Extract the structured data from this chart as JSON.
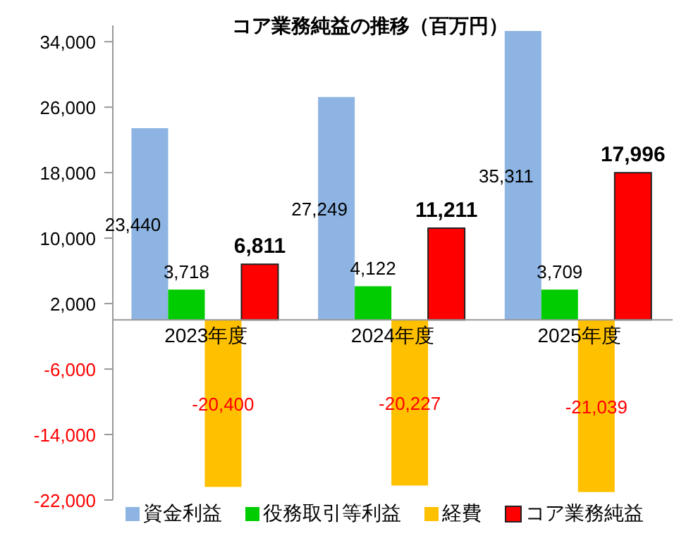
{
  "chart_data": {
    "type": "bar",
    "title": "コア業務純益の推移（百万円）",
    "categories": [
      "2023年度",
      "2024年度",
      "2025年度"
    ],
    "series": [
      {
        "name": "資金利益",
        "color": "#8db4e2",
        "values": [
          23440,
          27249,
          35311
        ],
        "value_labels": [
          "23,440",
          "27,249",
          "35,311"
        ]
      },
      {
        "name": "役務取引等利益",
        "color": "#00cc00",
        "values": [
          3718,
          4122,
          3709
        ],
        "value_labels": [
          "3,718",
          "4,122",
          "3,709"
        ]
      },
      {
        "name": "経費",
        "color": "#ffc000",
        "values": [
          -20400,
          -20227,
          -21039
        ],
        "value_labels": [
          "-20,400",
          "-20,227",
          "-21,039"
        ]
      },
      {
        "name": "コア業務純益",
        "color": "#ff0000",
        "values": [
          6811,
          11211,
          17996
        ],
        "value_labels": [
          "6,811",
          "11,211",
          "17,996"
        ]
      }
    ],
    "ylim": [
      -22000,
      36000
    ],
    "yticks": [
      {
        "value": -22000,
        "label": "-22,000"
      },
      {
        "value": -14000,
        "label": "-14,000"
      },
      {
        "value": -6000,
        "label": "-6,000"
      },
      {
        "value": 2000,
        "label": "2,000"
      },
      {
        "value": 10000,
        "label": "10,000"
      },
      {
        "value": 18000,
        "label": "18,000"
      },
      {
        "value": 26000,
        "label": "26,000"
      },
      {
        "value": 34000,
        "label": "34,000"
      }
    ],
    "legend": "bottom"
  }
}
